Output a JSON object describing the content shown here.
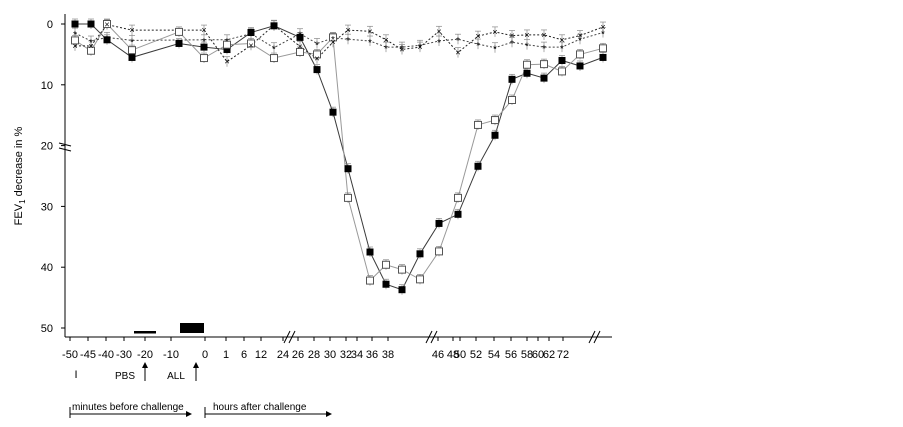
{
  "chart_data": {
    "type": "line",
    "ylabel": "FEV",
    "ylabel_sub": "1",
    "ylabel_rest": " decrease in %",
    "yticks": [
      0,
      10,
      20,
      30,
      40,
      50
    ],
    "ylim": [
      0,
      50
    ],
    "y_inverted": true,
    "xticks": [
      "-50",
      "-45",
      "-40",
      "-30",
      "-20",
      "-10",
      "0",
      "1",
      "6",
      "12",
      "24",
      "26",
      "28",
      "30",
      "32",
      "34",
      "36",
      "38",
      "46",
      "48",
      "50",
      "52",
      "54",
      "56",
      "58",
      "60",
      "62",
      "72"
    ],
    "x_positions": [
      -50,
      -45,
      -40,
      -30,
      -20,
      -10,
      0,
      1,
      6,
      12,
      24,
      26,
      28,
      30,
      32,
      34,
      36,
      38,
      46,
      48,
      50,
      52,
      54,
      56,
      58,
      60,
      62,
      72
    ],
    "bottom_labels": {
      "baseline_symbol": "I",
      "pbs": "PBS",
      "all": "ALL",
      "minutes_before": "minutes before challenge",
      "hours_after": "hours after challenge"
    },
    "series": [
      {
        "marker": "filled-square",
        "color": "#3a3a3a",
        "points": [
          [
            -50,
            0
          ],
          [
            -45,
            0
          ],
          [
            -40,
            2.6
          ],
          [
            -30,
            5.5
          ],
          [
            -10,
            3.2
          ],
          [
            0,
            3.8
          ],
          [
            1,
            4.2
          ],
          [
            6,
            1.4
          ],
          [
            12,
            0.3
          ],
          [
            24,
            2.2
          ],
          [
            26,
            7.5
          ],
          [
            28,
            14.5
          ],
          [
            30,
            23.8
          ],
          [
            32,
            37.5
          ],
          [
            34,
            42.8
          ],
          [
            36,
            43.7
          ],
          [
            38,
            37.8
          ],
          [
            40,
            32.8
          ],
          [
            42,
            31.3
          ],
          [
            44,
            23.4
          ],
          [
            46,
            18.3
          ],
          [
            48,
            9.1
          ],
          [
            50,
            8.1
          ],
          [
            52,
            8.9
          ],
          [
            54,
            6.0
          ],
          [
            56,
            6.9
          ],
          [
            58,
            5.5
          ]
        ]
      },
      {
        "marker": "open-square",
        "color": "#999999",
        "points": [
          [
            -50,
            2.7
          ],
          [
            -45,
            4.4
          ],
          [
            -40,
            0
          ],
          [
            -30,
            4.3
          ],
          [
            -10,
            1.3
          ],
          [
            0,
            5.6
          ],
          [
            1,
            3.4
          ],
          [
            6,
            3.2
          ],
          [
            12,
            5.6
          ],
          [
            24,
            4.6
          ],
          [
            26,
            5.0
          ],
          [
            28,
            2.2
          ],
          [
            30,
            28.6
          ],
          [
            32,
            42.2
          ],
          [
            34,
            39.6
          ],
          [
            36,
            40.4
          ],
          [
            38,
            42.0
          ],
          [
            40,
            37.4
          ],
          [
            42,
            28.6
          ],
          [
            44,
            16.6
          ],
          [
            46,
            15.8
          ],
          [
            48,
            12.5
          ],
          [
            50,
            6.7
          ],
          [
            52,
            6.6
          ],
          [
            54,
            7.8
          ],
          [
            56,
            5.0
          ],
          [
            58,
            4.0
          ]
        ]
      },
      {
        "marker": "x",
        "color": "#222222",
        "points": [
          [
            -50,
            3.6
          ],
          [
            -45,
            3.6
          ],
          [
            -40,
            0.1
          ],
          [
            -30,
            1.0
          ],
          [
            0,
            1.0
          ],
          [
            1,
            6.2
          ],
          [
            6,
            3.5
          ],
          [
            12,
            0.2
          ],
          [
            24,
            3.7
          ],
          [
            26,
            5.7
          ],
          [
            28,
            3.0
          ],
          [
            30,
            1.0
          ],
          [
            32,
            1.2
          ],
          [
            34,
            2.6
          ],
          [
            36,
            4.2
          ],
          [
            38,
            3.8
          ],
          [
            40,
            1.2
          ],
          [
            42,
            4.7
          ],
          [
            44,
            2.0
          ],
          [
            46,
            1.3
          ],
          [
            48,
            1.9
          ],
          [
            50,
            1.8
          ],
          [
            52,
            1.8
          ],
          [
            54,
            2.6
          ],
          [
            56,
            1.9
          ],
          [
            58,
            0.5
          ]
        ]
      },
      {
        "marker": "asterisk",
        "color": "#444444",
        "points": [
          [
            -50,
            1.5
          ],
          [
            -45,
            2.8
          ],
          [
            -40,
            2.2
          ],
          [
            -30,
            2.7
          ],
          [
            0,
            2.6
          ],
          [
            1,
            2.6
          ],
          [
            6,
            1.6
          ],
          [
            12,
            3.9
          ],
          [
            24,
            1.6
          ],
          [
            26,
            3.2
          ],
          [
            28,
            2.3
          ],
          [
            30,
            2.5
          ],
          [
            32,
            2.8
          ],
          [
            34,
            3.8
          ],
          [
            36,
            3.8
          ],
          [
            38,
            3.5
          ],
          [
            40,
            2.8
          ],
          [
            42,
            2.5
          ],
          [
            44,
            3.3
          ],
          [
            46,
            3.9
          ],
          [
            48,
            3.0
          ],
          [
            50,
            3.4
          ],
          [
            52,
            3.8
          ],
          [
            54,
            3.8
          ],
          [
            56,
            2.5
          ],
          [
            58,
            1.4
          ]
        ]
      }
    ]
  }
}
